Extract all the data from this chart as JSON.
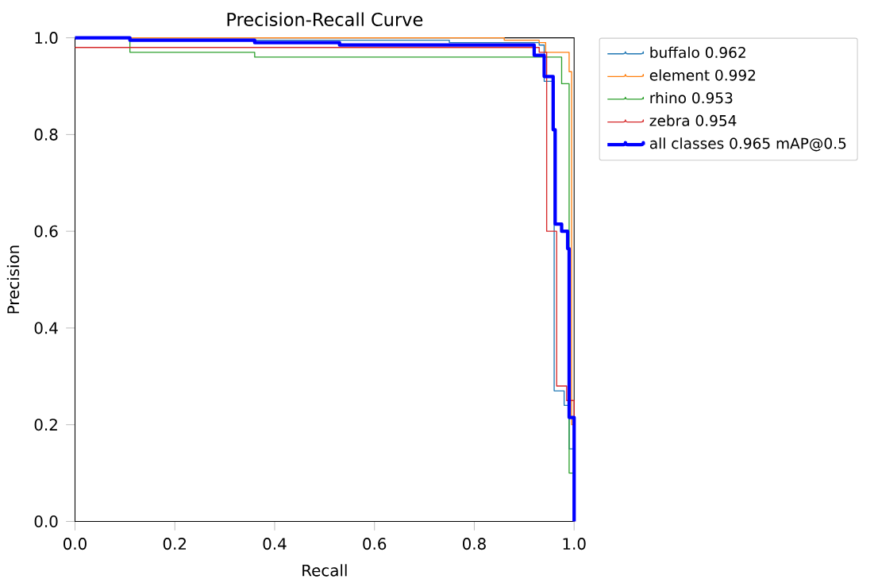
{
  "chart_data": {
    "type": "step",
    "title": "Precision-Recall Curve",
    "xlabel": "Recall",
    "ylabel": "Precision",
    "xlim": [
      0,
      1
    ],
    "ylim": [
      0,
      1
    ],
    "xticks": [
      {
        "value": 0,
        "label": "0.0"
      },
      {
        "value": 0.2,
        "label": "0.2"
      },
      {
        "value": 0.4,
        "label": "0.4"
      },
      {
        "value": 0.6,
        "label": "0.6"
      },
      {
        "value": 0.8,
        "label": "0.8"
      },
      {
        "value": 1,
        "label": "1.0"
      }
    ],
    "yticks": [
      {
        "value": 0,
        "label": "0.0"
      },
      {
        "value": 0.2,
        "label": "0.2"
      },
      {
        "value": 0.4,
        "label": "0.4"
      },
      {
        "value": 0.6,
        "label": "0.6"
      },
      {
        "value": 0.8,
        "label": "0.8"
      },
      {
        "value": 1,
        "label": "1.0"
      }
    ],
    "legend": "right",
    "grid": false,
    "series": [
      {
        "name": "buffalo 0.962",
        "color": "#1f77b4",
        "x": [
          0,
          0.11,
          0.75,
          0.93,
          0.94,
          0.96,
          0.98,
          0.99,
          1.0
        ],
        "values": [
          1.0,
          0.995,
          0.99,
          0.985,
          0.91,
          0.27,
          0.24,
          0.15,
          0
        ]
      },
      {
        "name": "element 0.992",
        "color": "#ff7f0e",
        "x": [
          0,
          0.86,
          0.93,
          0.943,
          0.99,
          0.995,
          1.0
        ],
        "values": [
          1.0,
          0.995,
          0.99,
          0.97,
          0.93,
          0.2,
          0
        ]
      },
      {
        "name": "rhino 0.953",
        "color": "#2ca02c",
        "x": [
          0,
          0.11,
          0.36,
          0.975,
          0.99,
          1.0
        ],
        "values": [
          1.0,
          0.97,
          0.96,
          0.905,
          0.1,
          0
        ]
      },
      {
        "name": "zebra 0.954",
        "color": "#d62728",
        "x": [
          0,
          0.93,
          0.945,
          0.965,
          0.985,
          1.0
        ],
        "values": [
          0.98,
          0.97,
          0.6,
          0.28,
          0.25,
          0
        ]
      },
      {
        "name": "all classes 0.965 mAP@0.5",
        "color": "#0000ff",
        "x": [
          0,
          0.11,
          0.36,
          0.53,
          0.92,
          0.94,
          0.958,
          0.962,
          0.975,
          0.987,
          0.99,
          1.0
        ],
        "values": [
          1.0,
          0.995,
          0.99,
          0.985,
          0.964,
          0.92,
          0.81,
          0.615,
          0.6,
          0.564,
          0.215,
          0
        ]
      }
    ]
  }
}
